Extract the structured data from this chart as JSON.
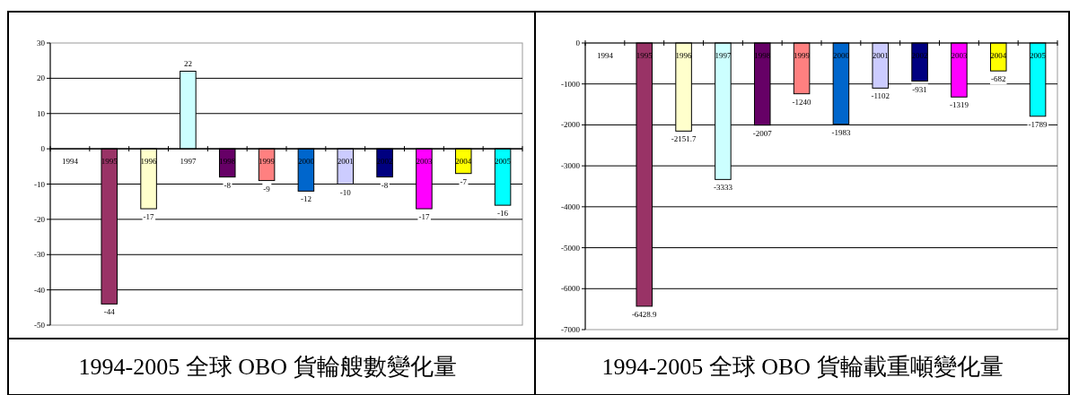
{
  "chart_data": [
    {
      "type": "bar",
      "title": "1994-2005 全球 OBO 貨輪艘數變化量",
      "categories": [
        "1994",
        "1995",
        "1996",
        "1997",
        "1998",
        "1999",
        "2000",
        "2001",
        "2002",
        "2003",
        "2004",
        "2005"
      ],
      "values": [
        null,
        -44,
        -17,
        22,
        -8,
        -9,
        -12,
        -10,
        -8,
        -17,
        -7,
        -16
      ],
      "colors": [
        null,
        "#993366",
        "#ffffcc",
        "#ccffff",
        "#660066",
        "#ff8080",
        "#0066cc",
        "#ccccff",
        "#000080",
        "#ff00ff",
        "#ffff00",
        "#00ffff"
      ],
      "ylim": [
        -50,
        30
      ],
      "yticks": [
        -50,
        -40,
        -30,
        -20,
        -10,
        0,
        10,
        20,
        30
      ],
      "grid": "y",
      "data_labels": true
    },
    {
      "type": "bar",
      "title": "1994-2005 全球 OBO 貨輪載重噸變化量",
      "categories": [
        "1994",
        "1995",
        "1996",
        "1997",
        "1998",
        "1999",
        "2000",
        "2001",
        "2002",
        "2003",
        "2004",
        "2005"
      ],
      "values": [
        null,
        -6428.9,
        -2151.7,
        -3333,
        -2007,
        -1240,
        -1983,
        -1102,
        -931,
        -1319,
        -682,
        -1789
      ],
      "colors": [
        null,
        "#993366",
        "#ffffcc",
        "#ccffff",
        "#660066",
        "#ff8080",
        "#0066cc",
        "#ccccff",
        "#000080",
        "#ff00ff",
        "#ffff00",
        "#00ffff"
      ],
      "ylim": [
        -7000,
        0
      ],
      "yticks": [
        -7000,
        -6000,
        -5000,
        -4000,
        -3000,
        -2000,
        -1000,
        0
      ],
      "grid": "y",
      "data_labels": true
    }
  ]
}
